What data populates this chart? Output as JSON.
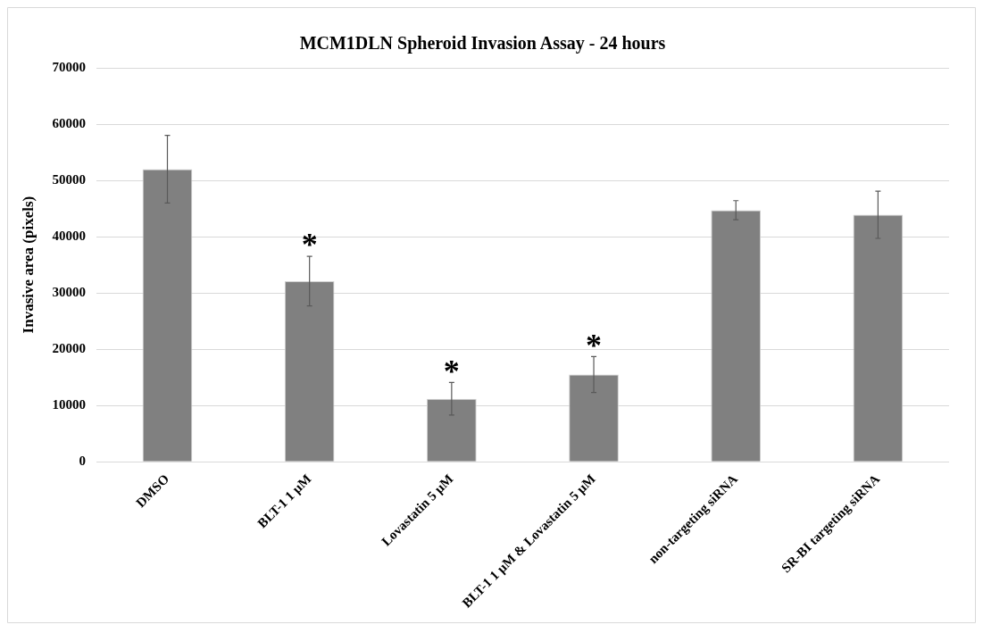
{
  "chart_data": {
    "type": "bar",
    "title": "MCM1DLN Spheroid Invasion Assay - 24 hours",
    "ylabel": "Invasive area (pixels)",
    "categories": [
      "DMSO",
      "BLT-1 1 µM",
      "Lovastatin 5 µM",
      "BLT-1 1 µM & Lovastatin 5 µM",
      "non-targeting siRNA",
      "SR-BI targeting siRNA"
    ],
    "values": [
      52000,
      32100,
      11200,
      15500,
      44700,
      43900
    ],
    "errors": [
      6000,
      4400,
      2900,
      3200,
      1700,
      4200
    ],
    "color": "#808080",
    "ylim": [
      0,
      70000
    ],
    "yticks": [
      0,
      10000,
      20000,
      30000,
      40000,
      50000,
      60000,
      70000
    ],
    "grid": "y",
    "legend": false,
    "annotations": [
      {
        "text": "*",
        "x": "BLT-1 1 µM",
        "y": 36500
      },
      {
        "text": "*",
        "x": "Lovastatin 5 µM",
        "y": 14100
      },
      {
        "text": "*",
        "x": "BLT-1 1 µM & Lovastatin 5 µM",
        "y": 18700
      }
    ]
  }
}
